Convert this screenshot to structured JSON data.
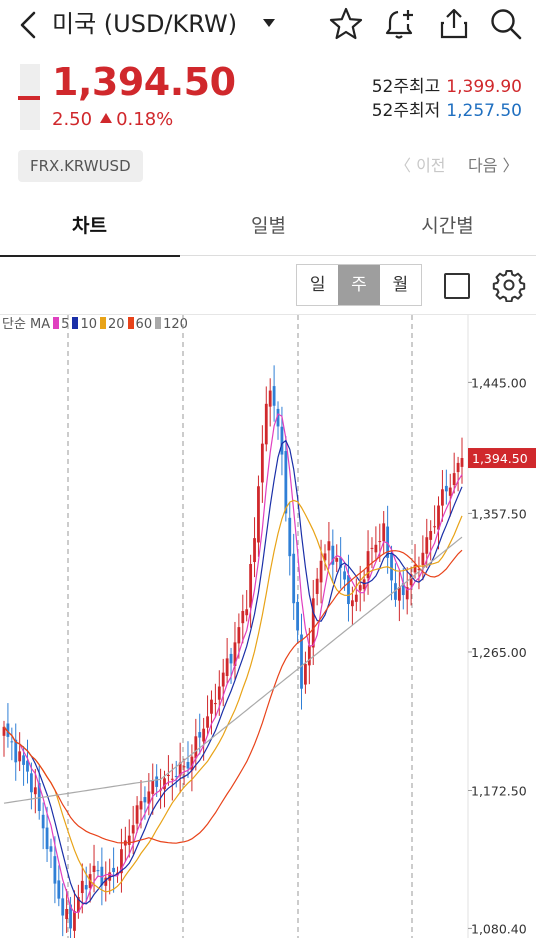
{
  "header": {
    "title": "미국 (USD/KRW)",
    "icons": [
      "chevron-left-icon",
      "caret-down-icon",
      "star-icon",
      "bell-plus-icon",
      "share-icon",
      "search-icon"
    ]
  },
  "quote": {
    "price": "1,394.50",
    "change": "2.50",
    "change_pct": "0.18%",
    "week52_high_label": "52주최고",
    "week52_high": "1,399.90",
    "week52_low_label": "52주최저",
    "week52_low": "1,257.50",
    "code": "FRX.KRWUSD"
  },
  "nav": {
    "prev": "〈 이전",
    "next": "다음 〉"
  },
  "tabs": [
    {
      "label": "차트",
      "active": true
    },
    {
      "label": "일별",
      "active": false
    },
    {
      "label": "시간별",
      "active": false
    }
  ],
  "period": {
    "options": [
      "일",
      "주",
      "월"
    ],
    "selected": "주"
  },
  "colors": {
    "up": "#d0282c",
    "down": "#2f7fd6",
    "ma5": "#e040c0",
    "ma10": "#1a2fa8",
    "ma20": "#e8a317",
    "ma60": "#e8431a",
    "ma120": "#aaaaaa"
  },
  "chart_data": {
    "type": "line",
    "legend_title": "단순 MA",
    "legend": [
      "5",
      "10",
      "20",
      "60",
      "120"
    ],
    "y_ticks": [
      "1,445.00",
      "1,357.50",
      "1,265.00",
      "1,172.50",
      "1,080.40"
    ],
    "y_tick_values": [
      1445.0,
      1357.5,
      1265.0,
      1172.5,
      1080.4
    ],
    "current_price_label": "1,394.50",
    "current_price": 1394.5,
    "ylim": [
      1074,
      1490
    ],
    "grid": "vertical-dashed",
    "weeks": 118,
    "close_series": [
      {
        "x": 0,
        "y": 1212
      },
      {
        "x": 3,
        "y": 1198
      },
      {
        "x": 6,
        "y": 1185
      },
      {
        "x": 9,
        "y": 1160
      },
      {
        "x": 12,
        "y": 1125
      },
      {
        "x": 15,
        "y": 1090
      },
      {
        "x": 17,
        "y": 1085
      },
      {
        "x": 20,
        "y": 1108
      },
      {
        "x": 23,
        "y": 1120
      },
      {
        "x": 26,
        "y": 1112
      },
      {
        "x": 29,
        "y": 1122
      },
      {
        "x": 32,
        "y": 1145
      },
      {
        "x": 35,
        "y": 1165
      },
      {
        "x": 38,
        "y": 1175
      },
      {
        "x": 41,
        "y": 1178
      },
      {
        "x": 44,
        "y": 1185
      },
      {
        "x": 47,
        "y": 1190
      },
      {
        "x": 50,
        "y": 1210
      },
      {
        "x": 53,
        "y": 1228
      },
      {
        "x": 56,
        "y": 1250
      },
      {
        "x": 59,
        "y": 1270
      },
      {
        "x": 62,
        "y": 1300
      },
      {
        "x": 64,
        "y": 1340
      },
      {
        "x": 66,
        "y": 1410
      },
      {
        "x": 68,
        "y": 1440
      },
      {
        "x": 70,
        "y": 1420
      },
      {
        "x": 72,
        "y": 1360
      },
      {
        "x": 74,
        "y": 1300
      },
      {
        "x": 76,
        "y": 1245
      },
      {
        "x": 78,
        "y": 1270
      },
      {
        "x": 80,
        "y": 1320
      },
      {
        "x": 83,
        "y": 1335
      },
      {
        "x": 86,
        "y": 1320
      },
      {
        "x": 89,
        "y": 1295
      },
      {
        "x": 91,
        "y": 1310
      },
      {
        "x": 94,
        "y": 1335
      },
      {
        "x": 97,
        "y": 1345
      },
      {
        "x": 100,
        "y": 1300
      },
      {
        "x": 103,
        "y": 1310
      },
      {
        "x": 106,
        "y": 1325
      },
      {
        "x": 109,
        "y": 1345
      },
      {
        "x": 112,
        "y": 1370
      },
      {
        "x": 115,
        "y": 1382
      },
      {
        "x": 117,
        "y": 1394.5
      }
    ]
  }
}
